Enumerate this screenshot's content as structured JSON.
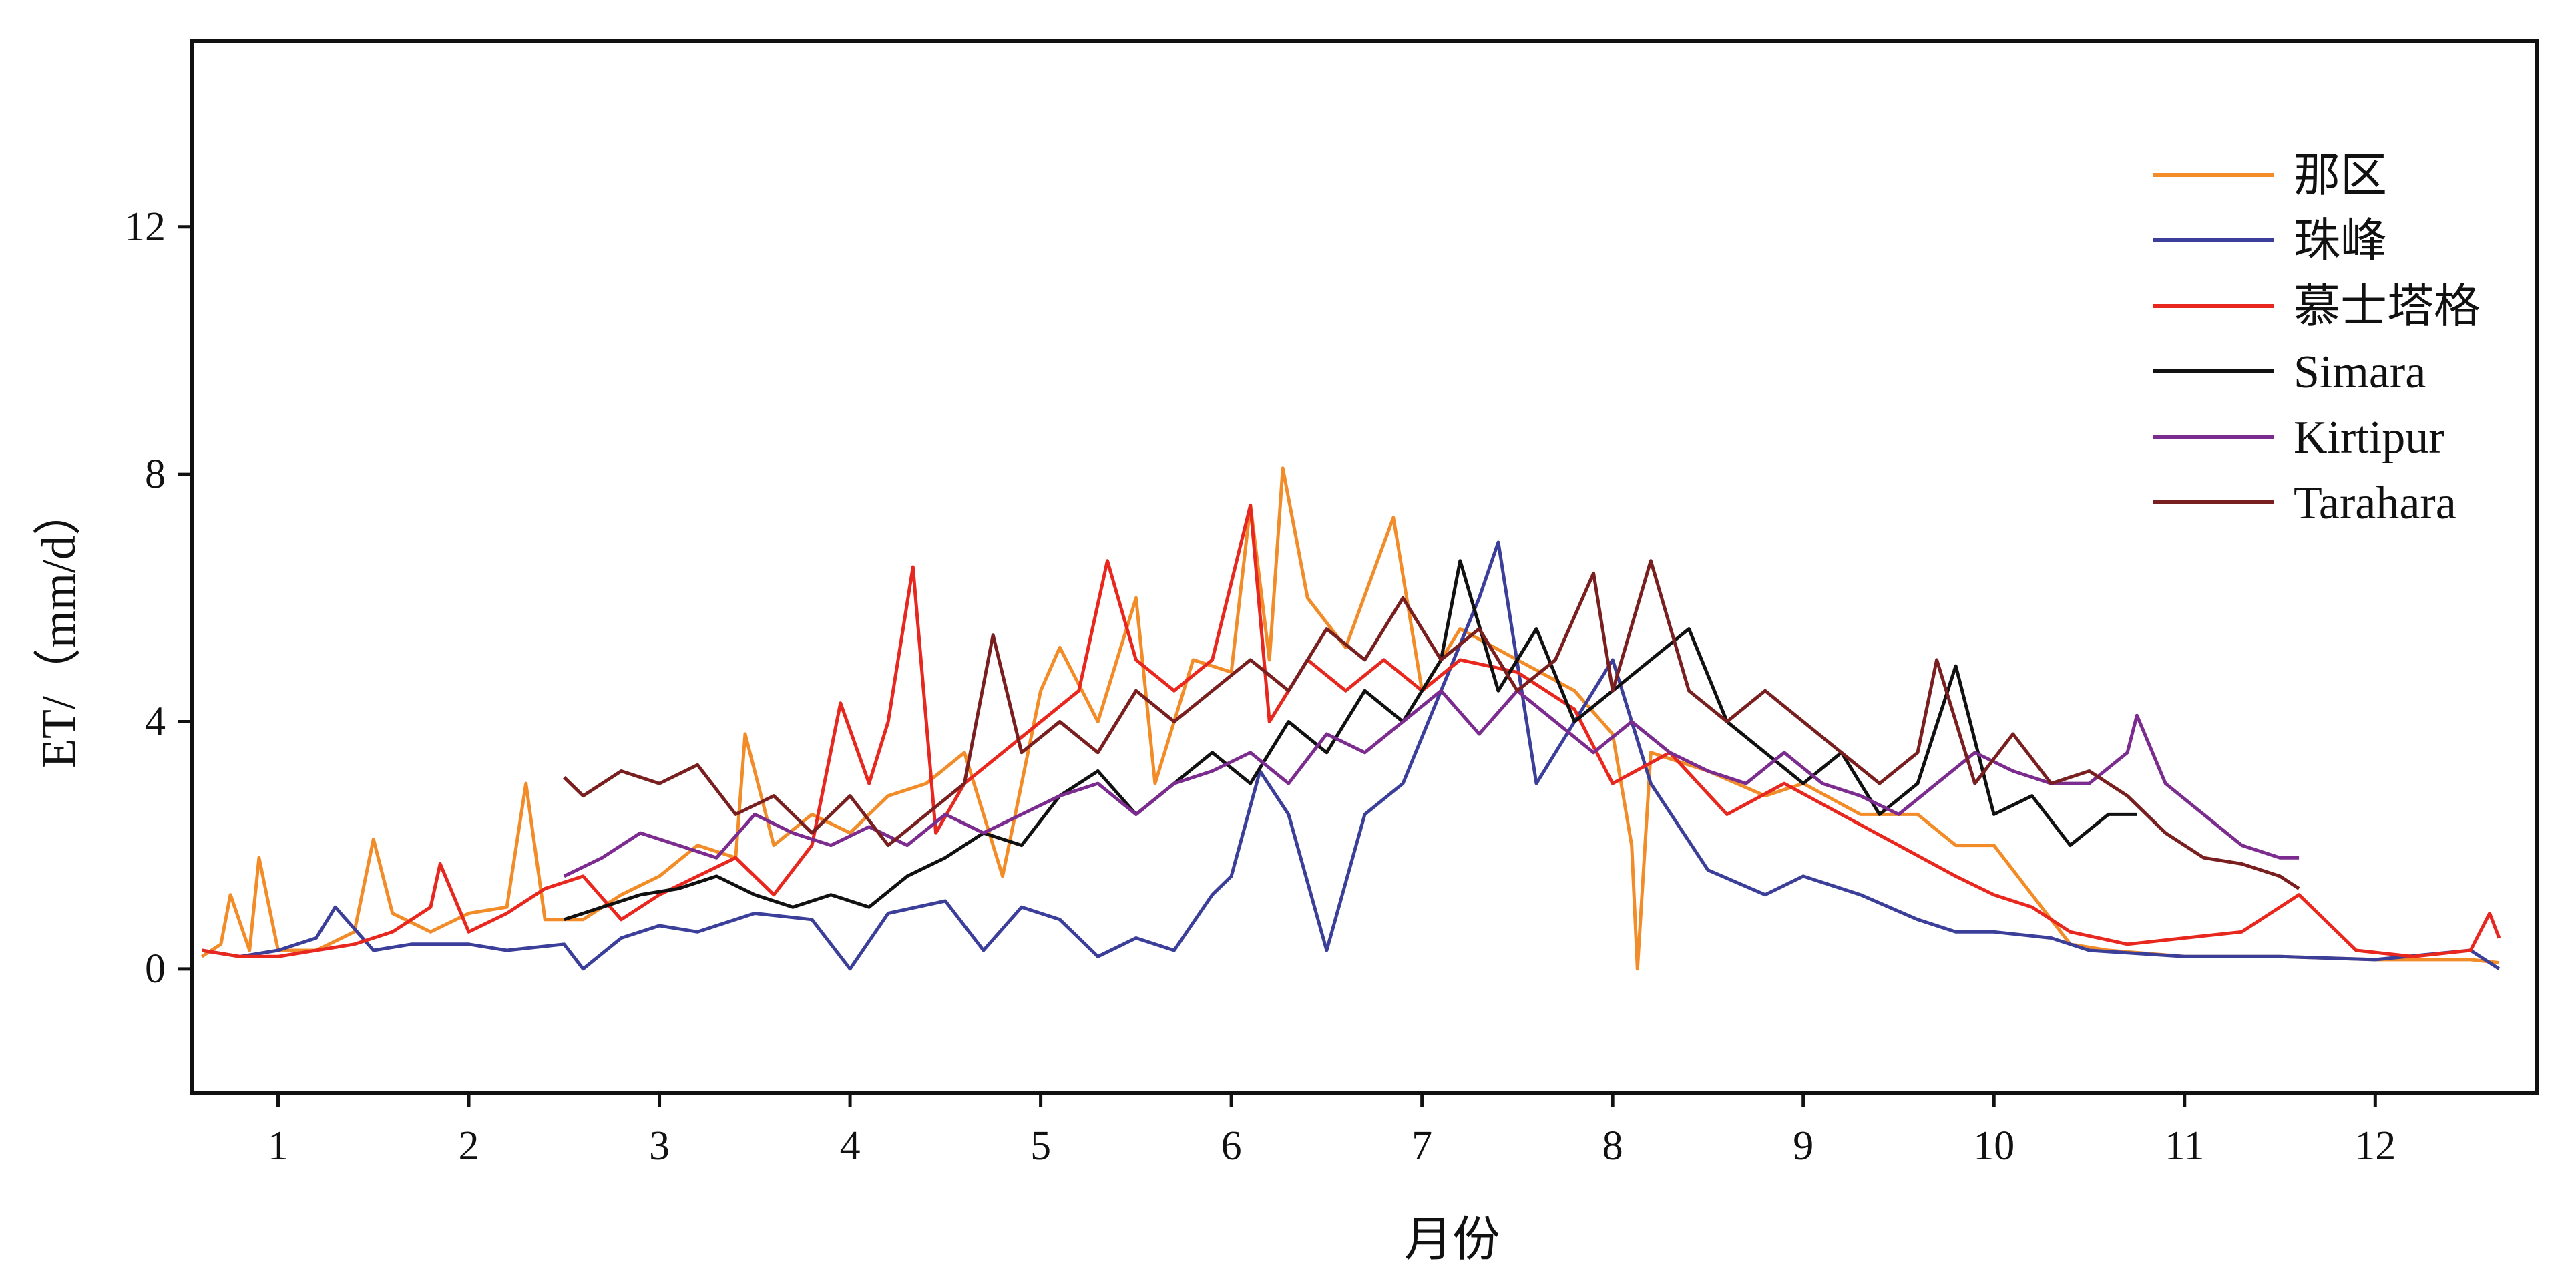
{
  "chart_data": {
    "type": "line",
    "xlabel": "月份",
    "ylabel": "ET/（mm/d）",
    "xlim": [
      0.55,
      12.85
    ],
    "ylim": [
      -2,
      15
    ],
    "x_ticks": [
      "1",
      "2",
      "3",
      "4",
      "5",
      "6",
      "7",
      "8",
      "9",
      "10",
      "11",
      "12"
    ],
    "y_ticks": [
      "0",
      "4",
      "8",
      "12"
    ],
    "legend_position": "top-right",
    "grid": false,
    "series": [
      {
        "name": "那区",
        "color": "#F28C28",
        "x": [
          0.6,
          0.7,
          0.75,
          0.85,
          0.9,
          1.0,
          1.2,
          1.4,
          1.5,
          1.6,
          1.8,
          2.0,
          2.2,
          2.3,
          2.4,
          2.6,
          2.8,
          3.0,
          3.2,
          3.4,
          3.45,
          3.6,
          3.8,
          4.0,
          4.2,
          4.4,
          4.6,
          4.8,
          5.0,
          5.1,
          5.3,
          5.5,
          5.6,
          5.8,
          6.0,
          6.1,
          6.2,
          6.27,
          6.4,
          6.6,
          6.85,
          7.0,
          7.2,
          7.5,
          7.8,
          8.0,
          8.1,
          8.13,
          8.2,
          8.5,
          8.8,
          9.0,
          9.3,
          9.6,
          9.8,
          10.0,
          10.2,
          10.4,
          10.6,
          11.0,
          11.5,
          12.0,
          12.5,
          12.65
        ],
        "y": [
          0.2,
          0.4,
          1.2,
          0.3,
          1.8,
          0.3,
          0.3,
          0.6,
          2.1,
          0.9,
          0.6,
          0.9,
          1.0,
          3.0,
          0.8,
          0.8,
          1.2,
          1.5,
          2.0,
          1.8,
          3.8,
          2.0,
          2.5,
          2.2,
          2.8,
          3.0,
          3.5,
          1.5,
          4.5,
          5.2,
          4.0,
          6.0,
          3.0,
          5.0,
          4.8,
          7.5,
          5.0,
          8.1,
          6.0,
          5.2,
          7.3,
          4.5,
          5.5,
          5.0,
          4.5,
          3.8,
          2.0,
          0.0,
          3.5,
          3.2,
          2.8,
          3.0,
          2.5,
          2.5,
          2.0,
          2.0,
          1.2,
          0.4,
          0.3,
          0.2,
          0.2,
          0.15,
          0.15,
          0.1
        ]
      },
      {
        "name": "珠峰",
        "color": "#3B3F9A",
        "x": [
          0.6,
          0.8,
          1.0,
          1.2,
          1.3,
          1.5,
          1.7,
          2.0,
          2.2,
          2.5,
          2.6,
          2.8,
          3.0,
          3.2,
          3.5,
          3.8,
          4.0,
          4.2,
          4.5,
          4.7,
          4.9,
          5.1,
          5.3,
          5.5,
          5.7,
          5.9,
          6.0,
          6.15,
          6.3,
          6.5,
          6.7,
          6.9,
          7.1,
          7.3,
          7.4,
          7.6,
          7.8,
          8.0,
          8.2,
          8.5,
          8.8,
          9.0,
          9.3,
          9.6,
          9.8,
          10.0,
          10.3,
          10.5,
          11.0,
          11.5,
          12.0,
          12.5,
          12.65
        ],
        "y": [
          0.3,
          0.2,
          0.3,
          0.5,
          1.0,
          0.3,
          0.4,
          0.4,
          0.3,
          0.4,
          0.0,
          0.5,
          0.7,
          0.6,
          0.9,
          0.8,
          0.0,
          0.9,
          1.1,
          0.3,
          1.0,
          0.8,
          0.2,
          0.5,
          0.3,
          1.2,
          1.5,
          3.2,
          2.5,
          0.3,
          2.5,
          3.0,
          4.5,
          6.0,
          6.9,
          3.0,
          4.0,
          5.0,
          3.0,
          1.6,
          1.2,
          1.5,
          1.2,
          0.8,
          0.6,
          0.6,
          0.5,
          0.3,
          0.2,
          0.2,
          0.15,
          0.3,
          0.0
        ]
      },
      {
        "name": "慕士塔格",
        "color": "#E8271E",
        "x": [
          0.6,
          0.8,
          1.0,
          1.2,
          1.4,
          1.6,
          1.8,
          1.85,
          2.0,
          2.2,
          2.4,
          2.6,
          2.8,
          3.0,
          3.2,
          3.4,
          3.6,
          3.8,
          3.95,
          4.1,
          4.2,
          4.33,
          4.45,
          4.6,
          4.8,
          5.0,
          5.2,
          5.35,
          5.5,
          5.7,
          5.9,
          6.1,
          6.2,
          6.4,
          6.6,
          6.8,
          7.0,
          7.2,
          7.5,
          7.8,
          8.0,
          8.3,
          8.6,
          8.9,
          9.2,
          9.5,
          9.8,
          10.0,
          10.2,
          10.4,
          10.7,
          11.0,
          11.3,
          11.6,
          11.9,
          12.2,
          12.5,
          12.6,
          12.65
        ],
        "y": [
          0.3,
          0.2,
          0.2,
          0.3,
          0.4,
          0.6,
          1.0,
          1.7,
          0.6,
          0.9,
          1.3,
          1.5,
          0.8,
          1.2,
          1.5,
          1.8,
          1.2,
          2.0,
          4.3,
          3.0,
          4.0,
          6.5,
          2.2,
          3.0,
          3.5,
          4.0,
          4.5,
          6.6,
          5.0,
          4.5,
          5.0,
          7.5,
          4.0,
          5.0,
          4.5,
          5.0,
          4.5,
          5.0,
          4.8,
          4.2,
          3.0,
          3.5,
          2.5,
          3.0,
          2.5,
          2.0,
          1.5,
          1.2,
          1.0,
          0.6,
          0.4,
          0.5,
          0.6,
          1.2,
          0.3,
          0.2,
          0.3,
          0.9,
          0.5
        ]
      },
      {
        "name": "Simara",
        "color": "#111111",
        "x": [
          2.5,
          2.7,
          2.9,
          3.1,
          3.3,
          3.5,
          3.7,
          3.9,
          4.1,
          4.3,
          4.5,
          4.7,
          4.9,
          5.1,
          5.3,
          5.5,
          5.7,
          5.9,
          6.1,
          6.3,
          6.5,
          6.7,
          6.9,
          7.1,
          7.2,
          7.4,
          7.6,
          7.8,
          8.0,
          8.2,
          8.4,
          8.6,
          8.8,
          9.0,
          9.2,
          9.4,
          9.6,
          9.8,
          10.0,
          10.2,
          10.4,
          10.6,
          10.75
        ],
        "y": [
          0.8,
          1.0,
          1.2,
          1.3,
          1.5,
          1.2,
          1.0,
          1.2,
          1.0,
          1.5,
          1.8,
          2.2,
          2.0,
          2.8,
          3.2,
          2.5,
          3.0,
          3.5,
          3.0,
          4.0,
          3.5,
          4.5,
          4.0,
          5.0,
          6.6,
          4.5,
          5.5,
          4.0,
          4.5,
          5.0,
          5.5,
          4.0,
          3.5,
          3.0,
          3.5,
          2.5,
          3.0,
          4.9,
          2.5,
          2.8,
          2.0,
          2.5,
          2.5
        ]
      },
      {
        "name": "Kirtipur",
        "color": "#7B2C8E",
        "x": [
          2.5,
          2.7,
          2.9,
          3.1,
          3.3,
          3.5,
          3.7,
          3.9,
          4.1,
          4.3,
          4.5,
          4.7,
          4.9,
          5.1,
          5.3,
          5.5,
          5.7,
          5.9,
          6.1,
          6.3,
          6.5,
          6.7,
          6.9,
          7.1,
          7.3,
          7.5,
          7.7,
          7.9,
          8.1,
          8.3,
          8.5,
          8.7,
          8.9,
          9.1,
          9.3,
          9.5,
          9.7,
          9.9,
          10.1,
          10.3,
          10.5,
          10.7,
          10.75,
          10.9,
          11.1,
          11.3,
          11.5,
          11.6
        ],
        "y": [
          1.5,
          1.8,
          2.2,
          2.0,
          1.8,
          2.5,
          2.2,
          2.0,
          2.3,
          2.0,
          2.5,
          2.2,
          2.5,
          2.8,
          3.0,
          2.5,
          3.0,
          3.2,
          3.5,
          3.0,
          3.8,
          3.5,
          4.0,
          4.5,
          3.8,
          4.5,
          4.0,
          3.5,
          4.0,
          3.5,
          3.2,
          3.0,
          3.5,
          3.0,
          2.8,
          2.5,
          3.0,
          3.5,
          3.2,
          3.0,
          3.0,
          3.5,
          4.1,
          3.0,
          2.5,
          2.0,
          1.8,
          1.8
        ]
      },
      {
        "name": "Tarahara",
        "color": "#7A1F1F",
        "x": [
          2.5,
          2.6,
          2.8,
          3.0,
          3.2,
          3.4,
          3.6,
          3.8,
          4.0,
          4.2,
          4.4,
          4.6,
          4.75,
          4.9,
          5.1,
          5.3,
          5.5,
          5.7,
          5.9,
          6.1,
          6.3,
          6.5,
          6.7,
          6.9,
          7.1,
          7.3,
          7.5,
          7.7,
          7.9,
          8.0,
          8.2,
          8.4,
          8.6,
          8.8,
          9.0,
          9.2,
          9.4,
          9.6,
          9.7,
          9.9,
          10.1,
          10.3,
          10.5,
          10.7,
          10.9,
          11.1,
          11.3,
          11.5,
          11.6
        ],
        "y": [
          3.1,
          2.8,
          3.2,
          3.0,
          3.3,
          2.5,
          2.8,
          2.2,
          2.8,
          2.0,
          2.5,
          3.0,
          5.4,
          3.5,
          4.0,
          3.5,
          4.5,
          4.0,
          4.5,
          5.0,
          4.5,
          5.5,
          5.0,
          6.0,
          5.0,
          5.5,
          4.5,
          5.0,
          6.4,
          4.5,
          6.6,
          4.5,
          4.0,
          4.5,
          4.0,
          3.5,
          3.0,
          3.5,
          5.0,
          3.0,
          3.8,
          3.0,
          3.2,
          2.8,
          2.2,
          1.8,
          1.7,
          1.5,
          1.3
        ]
      }
    ]
  }
}
